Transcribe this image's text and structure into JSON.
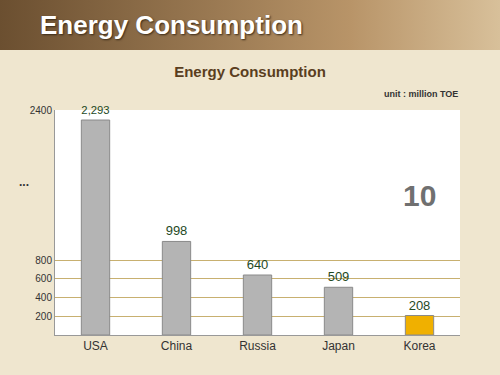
{
  "chart_data": {
    "type": "bar",
    "title": "Energy Consumption",
    "subtitle": "Energy Consumption",
    "categories": [
      "USA",
      "China",
      "Russia",
      "Japan",
      "Korea"
    ],
    "values": [
      2293,
      998,
      640,
      509,
      208
    ],
    "value_labels": [
      "2,293",
      "998",
      "640",
      "509",
      "208"
    ],
    "colors": [
      "#b4b4b4",
      "#b4b4b4",
      "#b4b4b4",
      "#b4b4b4",
      "#f0b000"
    ],
    "ylim": [
      0,
      2400
    ],
    "yticks": [
      200,
      400,
      600,
      800,
      2400
    ],
    "grid": true,
    "data_labels": true,
    "annotations": [
      {
        "text": "unit : million TOE"
      },
      {
        "text": "..."
      },
      {
        "text": "10",
        "category": "Korea"
      }
    ]
  }
}
